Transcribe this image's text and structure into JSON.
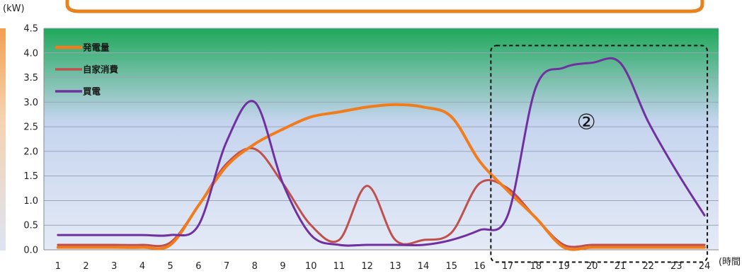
{
  "chart_data": {
    "type": "line",
    "title": "",
    "ylabel": "(kW)",
    "xlabel": "(時間",
    "ylim": [
      0,
      4.5
    ],
    "xlim": [
      0.5,
      24.5
    ],
    "yticks": [
      "0.0",
      "0.5",
      "1.0",
      "1.5",
      "2.0",
      "2.5",
      "3.0",
      "3.5",
      "4.0",
      "4.5"
    ],
    "x": [
      1,
      2,
      3,
      4,
      5,
      6,
      7,
      8,
      9,
      10,
      11,
      12,
      13,
      14,
      15,
      16,
      17,
      18,
      19,
      20,
      21,
      22,
      23,
      24
    ],
    "xtick_labels": [
      "1",
      "2",
      "3",
      "4",
      "5",
      "6",
      "7",
      "8",
      "9",
      "10",
      "11",
      "12",
      "13",
      "14",
      "15",
      "16",
      "17",
      "18",
      "19",
      "20",
      "21",
      "22",
      "23",
      "24"
    ],
    "grid": true,
    "legend_position": "top-left",
    "series": [
      {
        "name": "発電量",
        "color": "#f07c1e",
        "values": [
          0.05,
          0.05,
          0.05,
          0.05,
          0.1,
          0.9,
          1.7,
          2.15,
          2.45,
          2.7,
          2.8,
          2.9,
          2.95,
          2.9,
          2.7,
          1.8,
          1.2,
          0.65,
          0.05,
          0.05,
          0.05,
          0.05,
          0.05,
          0.05
        ]
      },
      {
        "name": "自家消費",
        "color": "#c0504d",
        "values": [
          0.1,
          0.1,
          0.1,
          0.1,
          0.15,
          0.9,
          1.75,
          2.05,
          1.35,
          0.5,
          0.2,
          1.3,
          0.2,
          0.2,
          0.35,
          1.35,
          1.25,
          0.65,
          0.1,
          0.1,
          0.1,
          0.1,
          0.1,
          0.1
        ]
      },
      {
        "name": "買電",
        "color": "#7030a0",
        "values": [
          0.3,
          0.3,
          0.3,
          0.3,
          0.3,
          0.5,
          2.2,
          3.0,
          1.35,
          0.3,
          0.1,
          0.1,
          0.1,
          0.1,
          0.2,
          0.4,
          0.7,
          3.3,
          3.7,
          3.8,
          3.8,
          2.6,
          1.6,
          0.7
        ]
      }
    ],
    "annotations": [
      {
        "text": "②",
        "x": 19.8,
        "y": 2.45
      }
    ],
    "highlight_box": {
      "x0": 16.4,
      "x1": 24.1,
      "y0": -0.25,
      "y1": 4.15
    },
    "plot_background": {
      "top_color": "#1fa85a",
      "mid_color": "#c5d4ee",
      "bottom_color": "#e4eaf6"
    },
    "frame_color": "#e8821e"
  }
}
